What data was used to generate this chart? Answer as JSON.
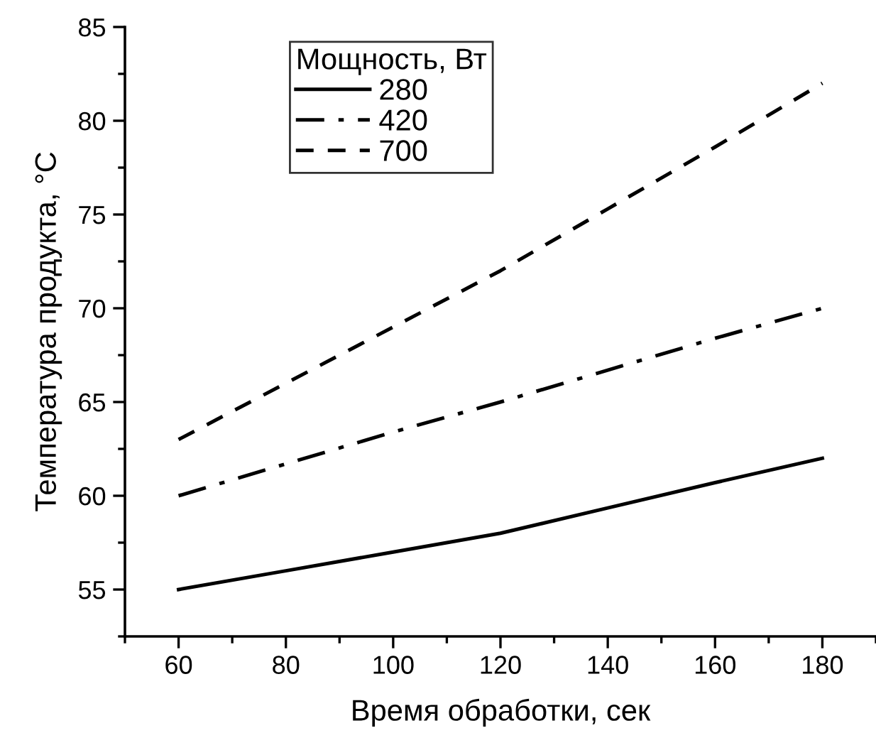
{
  "chart_data": {
    "type": "line",
    "xlabel": "Время обработки, сек",
    "ylabel": "Температура продукта, °C",
    "legend_title": "Мощность, Вт",
    "x": [
      60,
      80,
      100,
      120,
      140,
      160,
      180
    ],
    "series": [
      {
        "name": "280",
        "color": "#000000",
        "line_style": "solid",
        "values": [
          55,
          56,
          57,
          58,
          59.35,
          60.7,
          62
        ]
      },
      {
        "name": "420",
        "color": "#000000",
        "line_style": "dashdot",
        "values": [
          60,
          61.7,
          63.4,
          65,
          66.7,
          68.4,
          70
        ]
      },
      {
        "name": "700",
        "color": "#000000",
        "line_style": "dashed",
        "values": [
          63,
          66,
          69,
          72,
          75.3,
          78.6,
          82
        ]
      }
    ],
    "xlim": [
      50,
      190
    ],
    "xticks": [
      60,
      80,
      100,
      120,
      140,
      160,
      180
    ],
    "ylim": [
      52.5,
      85
    ],
    "yticks": [
      55,
      60,
      65,
      70,
      75,
      80,
      85
    ],
    "grid": false,
    "legend": "top left",
    "marker": "none"
  }
}
